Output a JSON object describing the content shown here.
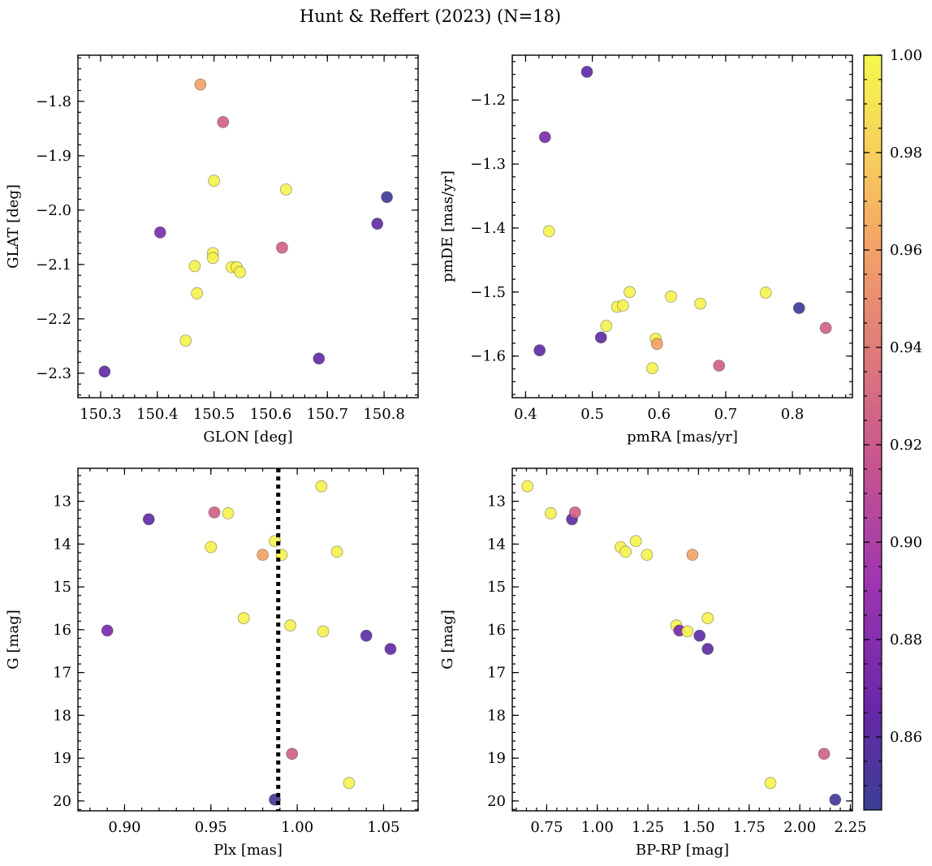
{
  "figure_title": "Hunt & Reffert (2023) (N=18)",
  "chart_data": [
    {
      "type": "scatter",
      "id": "glon-glat",
      "xlabel": "GLON [deg]",
      "ylabel": "GLAT [deg]",
      "xlim": [
        150.26,
        150.86
      ],
      "ylim": [
        -2.345,
        -1.715
      ],
      "y_inverted": false,
      "xticks": [
        150.3,
        150.4,
        150.5,
        150.6,
        150.7,
        150.8
      ],
      "xtick_labels": [
        "150.3",
        "150.4",
        "150.5",
        "150.6",
        "150.7",
        "150.8"
      ],
      "yticks": [
        -1.8,
        -1.9,
        -2.0,
        -2.1,
        -2.2,
        -2.3
      ],
      "ytick_labels": [
        "−1.8",
        "−1.9",
        "−2.0",
        "−2.1",
        "−2.2",
        "−2.3"
      ],
      "x": [
        150.476,
        150.516,
        150.5,
        150.627,
        150.805,
        150.405,
        150.788,
        150.62,
        150.498,
        150.498,
        150.466,
        150.531,
        150.54,
        150.546,
        150.47,
        150.45,
        150.685,
        150.307
      ],
      "y": [
        -1.769,
        -1.838,
        -1.946,
        -1.962,
        -1.976,
        -2.041,
        -2.025,
        -2.069,
        -2.079,
        -2.088,
        -2.103,
        -2.105,
        -2.105,
        -2.114,
        -2.153,
        -2.24,
        -2.273,
        -2.297
      ],
      "color_values": [
        0.96,
        0.925,
        0.997,
        0.997,
        0.848,
        0.875,
        0.862,
        0.925,
        0.997,
        0.997,
        0.997,
        0.997,
        0.997,
        0.997,
        0.997,
        0.997,
        0.862,
        0.862
      ]
    },
    {
      "type": "scatter",
      "id": "pmra-pmde",
      "xlabel": "pmRA [mas/yr]",
      "ylabel": "pmDE [mas/yr]",
      "xlim": [
        0.38,
        0.89
      ],
      "ylim": [
        -1.665,
        -1.13
      ],
      "y_inverted": false,
      "xticks": [
        0.4,
        0.5,
        0.6,
        0.7,
        0.8
      ],
      "xtick_labels": [
        "0.4",
        "0.5",
        "0.6",
        "0.7",
        "0.8"
      ],
      "yticks": [
        -1.2,
        -1.3,
        -1.4,
        -1.5,
        -1.6
      ],
      "ytick_labels": [
        "−1.2",
        "−1.3",
        "−1.4",
        "−1.5",
        "−1.6"
      ],
      "x": [
        0.492,
        0.429,
        0.435,
        0.556,
        0.618,
        0.662,
        0.76,
        0.81,
        0.85,
        0.537,
        0.546,
        0.521,
        0.513,
        0.595,
        0.597,
        0.59,
        0.69,
        0.421
      ],
      "y": [
        -1.156,
        -1.258,
        -1.405,
        -1.5,
        -1.507,
        -1.518,
        -1.501,
        -1.525,
        -1.556,
        -1.523,
        -1.521,
        -1.553,
        -1.571,
        -1.573,
        -1.581,
        -1.619,
        -1.615,
        -1.591
      ],
      "color_values": [
        0.862,
        0.875,
        0.997,
        0.997,
        0.997,
        0.997,
        0.997,
        0.848,
        0.925,
        0.997,
        0.997,
        0.997,
        0.862,
        0.997,
        0.96,
        0.997,
        0.925,
        0.862
      ]
    },
    {
      "type": "scatter",
      "id": "plx-g",
      "xlabel": "Plx [mas]",
      "ylabel": "G [mag]",
      "xlim": [
        0.873,
        1.07
      ],
      "ylim": [
        20.23,
        12.23
      ],
      "y_inverted": true,
      "xticks": [
        0.9,
        0.95,
        1.0,
        1.05
      ],
      "xtick_labels": [
        "0.90",
        "0.95",
        "1.00",
        "1.05"
      ],
      "yticks": [
        13,
        14,
        15,
        16,
        17,
        18,
        19,
        20
      ],
      "ytick_labels": [
        "13",
        "14",
        "15",
        "16",
        "17",
        "18",
        "19",
        "20"
      ],
      "vline": 0.989,
      "x": [
        1.014,
        0.914,
        0.952,
        0.96,
        0.987,
        0.95,
        0.98,
        0.991,
        1.023,
        0.969,
        0.996,
        1.015,
        0.89,
        1.04,
        1.054,
        0.997,
        1.03,
        0.987
      ],
      "y": [
        12.65,
        13.42,
        13.26,
        13.28,
        13.93,
        14.07,
        14.25,
        14.25,
        14.18,
        15.73,
        15.9,
        16.04,
        16.02,
        16.14,
        16.45,
        18.9,
        19.58,
        19.97
      ],
      "color_values": [
        0.997,
        0.862,
        0.925,
        0.997,
        0.997,
        0.997,
        0.96,
        0.997,
        0.997,
        0.997,
        0.997,
        0.997,
        0.875,
        0.862,
        0.862,
        0.925,
        0.997,
        0.848
      ]
    },
    {
      "type": "scatter",
      "id": "bprp-g",
      "xlabel": "BP-RP [mag]",
      "ylabel": "G [mag]",
      "xlim": [
        0.58,
        2.26
      ],
      "ylim": [
        20.23,
        12.23
      ],
      "y_inverted": true,
      "xticks": [
        0.75,
        1.0,
        1.25,
        1.5,
        1.75,
        2.0,
        2.25
      ],
      "xtick_labels": [
        "0.75",
        "1.00",
        "1.25",
        "1.50",
        "1.75",
        "2.00",
        "2.25"
      ],
      "yticks": [
        13,
        14,
        15,
        16,
        17,
        18,
        19,
        20
      ],
      "ytick_labels": [
        "13",
        "14",
        "15",
        "16",
        "17",
        "18",
        "19",
        "20"
      ],
      "x": [
        0.655,
        0.77,
        0.875,
        0.89,
        1.19,
        1.115,
        1.14,
        1.245,
        1.47,
        1.39,
        1.405,
        1.445,
        1.505,
        1.545,
        1.545,
        2.12,
        1.855,
        2.175
      ],
      "y": [
        12.65,
        13.28,
        13.42,
        13.26,
        13.93,
        14.07,
        14.18,
        14.25,
        14.25,
        15.9,
        16.02,
        16.04,
        16.14,
        15.73,
        16.45,
        18.9,
        19.58,
        19.97
      ],
      "color_values": [
        0.997,
        0.997,
        0.862,
        0.925,
        0.997,
        0.997,
        0.997,
        0.997,
        0.96,
        0.997,
        0.875,
        0.997,
        0.862,
        0.997,
        0.862,
        0.925,
        0.997,
        0.848
      ]
    }
  ],
  "colorbar": {
    "colormap": "plasma",
    "vmin": 0.845,
    "vmax": 1.0,
    "ticks": [
      0.86,
      0.88,
      0.9,
      0.92,
      0.94,
      0.96,
      0.98,
      1.0
    ],
    "tick_labels": [
      "0.86",
      "0.88",
      "0.90",
      "0.92",
      "0.94",
      "0.96",
      "0.98",
      "1.00"
    ]
  },
  "colors": {
    "frame": "#000000",
    "marker_edge": "#3c3c3c",
    "vline": "#000000",
    "colormap_stops": [
      "#3b3e95",
      "#6a27a8",
      "#9d35b0",
      "#c9578d",
      "#e07e78",
      "#f4a466",
      "#f7d25a",
      "#f5f84e"
    ]
  }
}
